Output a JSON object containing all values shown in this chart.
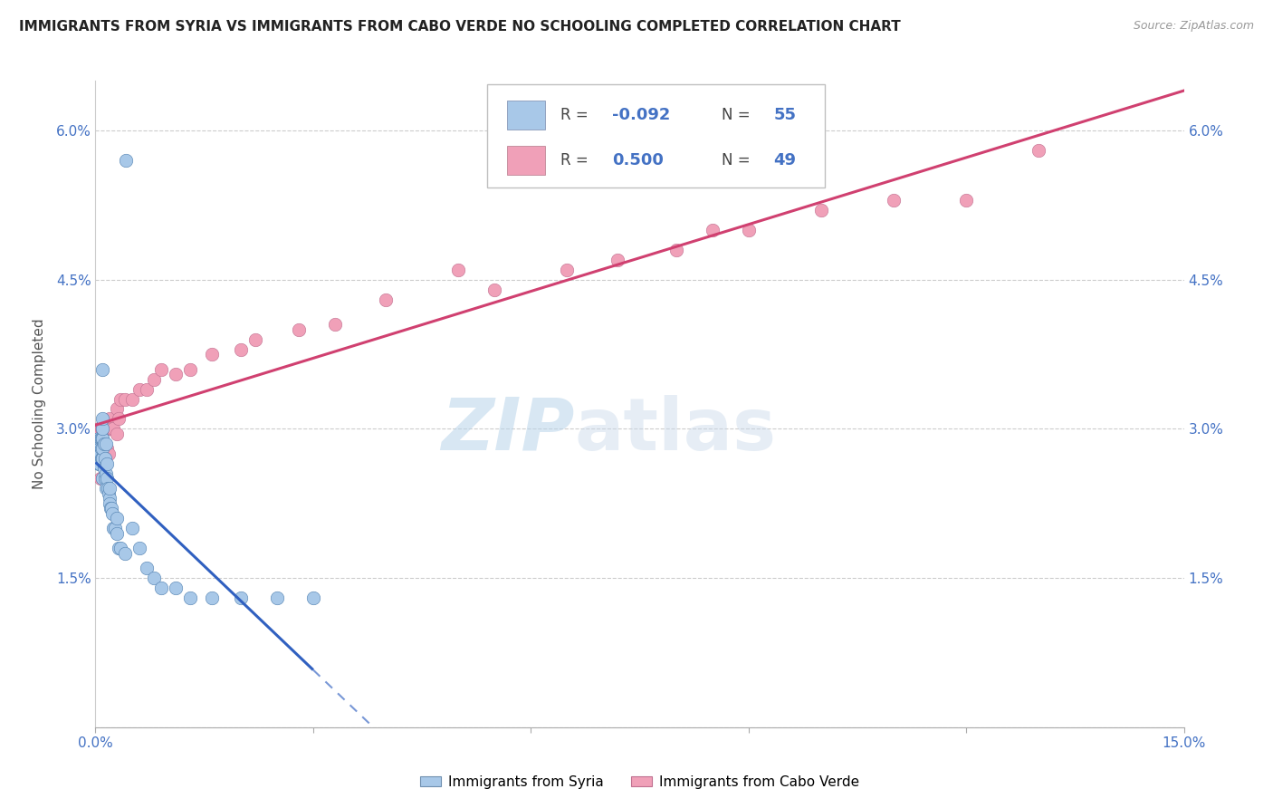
{
  "title": "IMMIGRANTS FROM SYRIA VS IMMIGRANTS FROM CABO VERDE NO SCHOOLING COMPLETED CORRELATION CHART",
  "source": "Source: ZipAtlas.com",
  "ylabel": "No Schooling Completed",
  "xmin": 0.0,
  "xmax": 0.15,
  "ymin": 0.0,
  "ymax": 0.065,
  "xticks": [
    0.0,
    0.03,
    0.06,
    0.09,
    0.12,
    0.15
  ],
  "xticklabels": [
    "0.0%",
    "",
    "",
    "",
    "",
    "15.0%"
  ],
  "yticks": [
    0.0,
    0.015,
    0.03,
    0.045,
    0.06
  ],
  "yticklabels": [
    "",
    "1.5%",
    "3.0%",
    "4.5%",
    "6.0%"
  ],
  "syria_color": "#a8c8e8",
  "cabo_color": "#f0a0b8",
  "syria_line_color": "#3060c0",
  "cabo_line_color": "#d04070",
  "watermark_zip": "ZIP",
  "watermark_atlas": "atlas",
  "syria_x": [
    0.0005,
    0.0005,
    0.0005,
    0.0006,
    0.0006,
    0.0007,
    0.0007,
    0.0008,
    0.0008,
    0.0008,
    0.0009,
    0.0009,
    0.0009,
    0.001,
    0.001,
    0.001,
    0.001,
    0.001,
    0.001,
    0.0012,
    0.0012,
    0.0013,
    0.0013,
    0.0014,
    0.0015,
    0.0015,
    0.0016,
    0.0016,
    0.0017,
    0.0018,
    0.0019,
    0.002,
    0.002,
    0.0021,
    0.0022,
    0.0023,
    0.0025,
    0.0027,
    0.003,
    0.003,
    0.0032,
    0.0035,
    0.004,
    0.0042,
    0.005,
    0.006,
    0.007,
    0.008,
    0.009,
    0.011,
    0.013,
    0.016,
    0.02,
    0.025,
    0.03
  ],
  "syria_y": [
    0.0265,
    0.028,
    0.029,
    0.0265,
    0.028,
    0.0275,
    0.029,
    0.027,
    0.028,
    0.029,
    0.025,
    0.027,
    0.029,
    0.027,
    0.028,
    0.029,
    0.03,
    0.031,
    0.036,
    0.026,
    0.0285,
    0.025,
    0.027,
    0.0285,
    0.024,
    0.0255,
    0.025,
    0.0265,
    0.024,
    0.0235,
    0.023,
    0.0225,
    0.024,
    0.022,
    0.022,
    0.0215,
    0.02,
    0.02,
    0.0195,
    0.021,
    0.018,
    0.018,
    0.0175,
    0.057,
    0.02,
    0.018,
    0.016,
    0.015,
    0.014,
    0.014,
    0.013,
    0.013,
    0.013,
    0.013,
    0.013
  ],
  "cabo_x": [
    0.0005,
    0.0005,
    0.0006,
    0.0007,
    0.0007,
    0.0008,
    0.0009,
    0.001,
    0.001,
    0.001,
    0.0012,
    0.0013,
    0.0014,
    0.0015,
    0.0016,
    0.0018,
    0.002,
    0.002,
    0.0022,
    0.0025,
    0.003,
    0.003,
    0.0032,
    0.0035,
    0.004,
    0.005,
    0.006,
    0.007,
    0.008,
    0.009,
    0.011,
    0.013,
    0.016,
    0.02,
    0.022,
    0.028,
    0.033,
    0.04,
    0.05,
    0.055,
    0.065,
    0.072,
    0.08,
    0.085,
    0.09,
    0.1,
    0.11,
    0.12,
    0.13
  ],
  "cabo_y": [
    0.03,
    0.028,
    0.03,
    0.025,
    0.028,
    0.03,
    0.025,
    0.03,
    0.028,
    0.03,
    0.03,
    0.028,
    0.028,
    0.028,
    0.028,
    0.0275,
    0.03,
    0.031,
    0.03,
    0.03,
    0.0295,
    0.032,
    0.031,
    0.033,
    0.033,
    0.033,
    0.034,
    0.034,
    0.035,
    0.036,
    0.0355,
    0.036,
    0.0375,
    0.038,
    0.039,
    0.04,
    0.0405,
    0.043,
    0.046,
    0.044,
    0.046,
    0.047,
    0.048,
    0.05,
    0.05,
    0.052,
    0.053,
    0.053,
    0.058
  ]
}
